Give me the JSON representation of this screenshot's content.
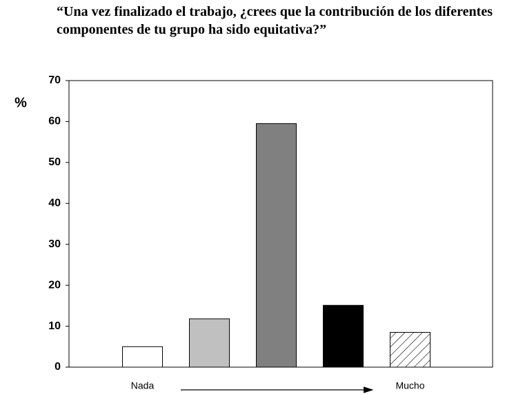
{
  "chart_data": {
    "type": "bar",
    "title": "“Una vez finalizado el trabajo, ¿crees que la contribución de los diferentes componentes de tu grupo ha sido equitativa?”",
    "y_label": "%",
    "categories": [
      "Nada",
      null,
      null,
      null,
      "Mucho"
    ],
    "values": [
      5,
      11.8,
      59.5,
      15.1,
      8.5
    ],
    "colors": [
      "#ffffff",
      "#c0c0c0",
      "#808080",
      "#000000",
      "#ffffff"
    ],
    "hatch": [
      false,
      false,
      false,
      false,
      true
    ],
    "ylim": [
      0,
      70
    ],
    "yticks": [
      0,
      10,
      20,
      30,
      40,
      50,
      60,
      70
    ],
    "grid": false
  }
}
